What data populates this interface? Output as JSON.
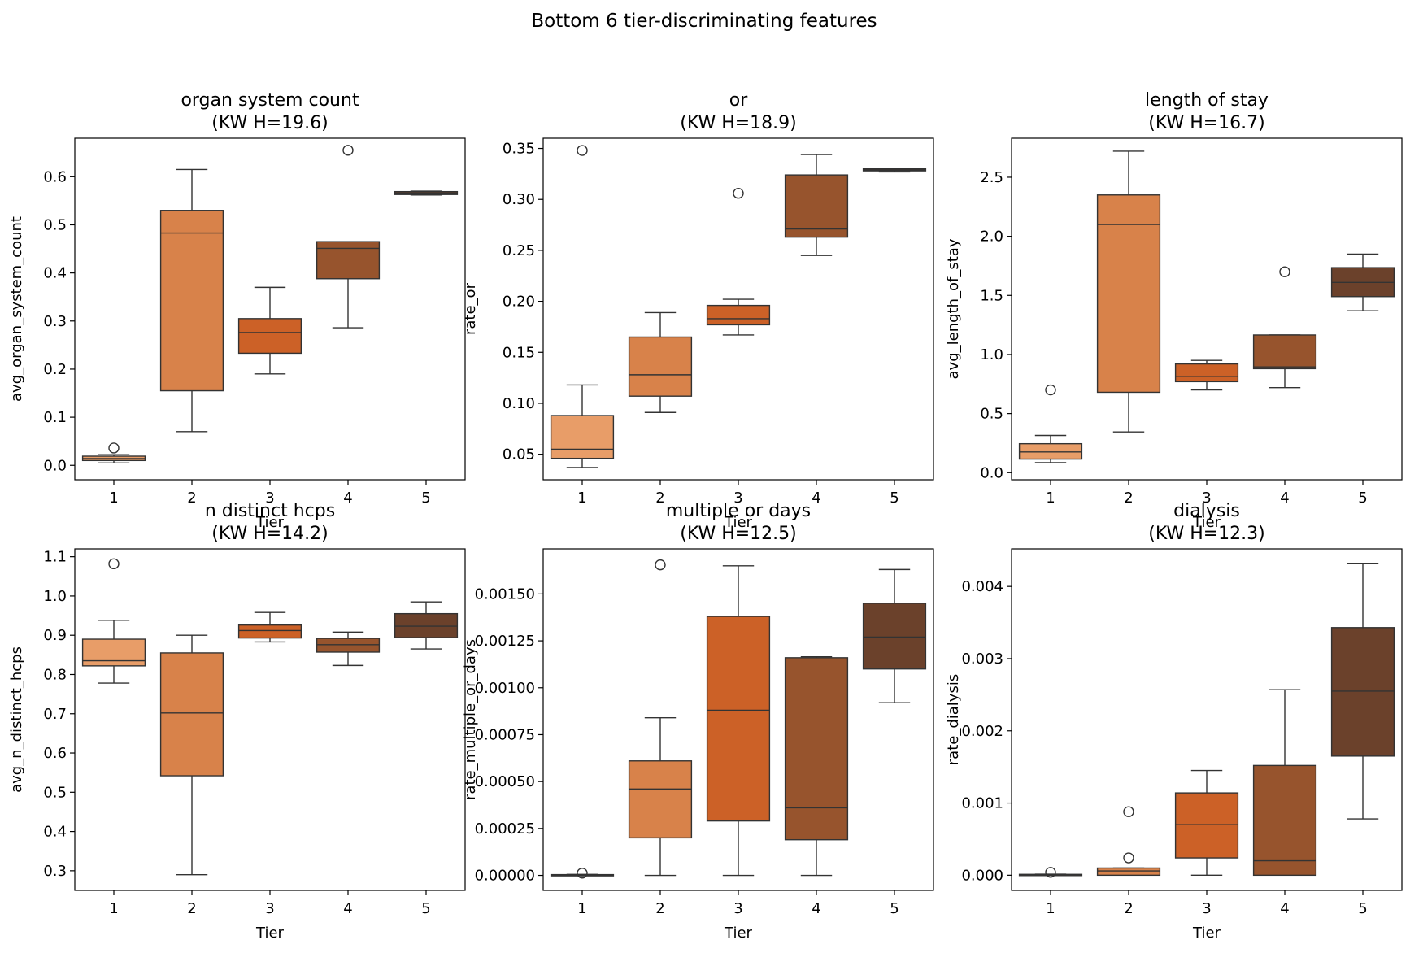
{
  "figure": {
    "suptitle": "Bottom 6 tier-discriminating features"
  },
  "colors": {
    "tiers": [
      "#e89d68",
      "#d8824a",
      "#cc6127",
      "#97542d",
      "#6b412b"
    ],
    "edge": "#333333",
    "axis": "#000000",
    "background": "#ffffff"
  },
  "chart_data": [
    {
      "type": "box",
      "title_line1": "organ system count",
      "title_line2": "(KW H=19.6)",
      "xlabel": "Tier",
      "ylabel": "avg_organ_system_count",
      "categories": [
        "1",
        "2",
        "3",
        "4",
        "5"
      ],
      "ylim": [
        -0.03,
        0.68
      ],
      "yticks": [
        0.0,
        0.1,
        0.2,
        0.3,
        0.4,
        0.5,
        0.6
      ],
      "ytick_labels": [
        "0.0",
        "0.1",
        "0.2",
        "0.3",
        "0.4",
        "0.5",
        "0.6"
      ],
      "boxes": [
        {
          "q1": 0.01,
          "median": 0.014,
          "q3": 0.019,
          "whislo": 0.005,
          "whishi": 0.022,
          "fliers": [
            0.036
          ]
        },
        {
          "q1": 0.155,
          "median": 0.483,
          "q3": 0.53,
          "whislo": 0.07,
          "whishi": 0.615,
          "fliers": []
        },
        {
          "q1": 0.233,
          "median": 0.276,
          "q3": 0.305,
          "whislo": 0.19,
          "whishi": 0.37,
          "fliers": []
        },
        {
          "q1": 0.388,
          "median": 0.451,
          "q3": 0.465,
          "whislo": 0.286,
          "whishi": 0.465,
          "fliers": [
            0.655
          ]
        },
        {
          "q1": 0.563,
          "median": 0.566,
          "q3": 0.569,
          "whislo": 0.562,
          "whishi": 0.57,
          "fliers": []
        }
      ]
    },
    {
      "type": "box",
      "title_line1": "or",
      "title_line2": "(KW H=18.9)",
      "xlabel": "Tier",
      "ylabel": "rate_or",
      "categories": [
        "1",
        "2",
        "3",
        "4",
        "5"
      ],
      "ylim": [
        0.025,
        0.36
      ],
      "yticks": [
        0.05,
        0.1,
        0.15,
        0.2,
        0.25,
        0.3,
        0.35
      ],
      "ytick_labels": [
        "0.05",
        "0.10",
        "0.15",
        "0.20",
        "0.25",
        "0.30",
        "0.35"
      ],
      "boxes": [
        {
          "q1": 0.046,
          "median": 0.055,
          "q3": 0.088,
          "whislo": 0.037,
          "whishi": 0.118,
          "fliers": [
            0.348
          ]
        },
        {
          "q1": 0.107,
          "median": 0.128,
          "q3": 0.165,
          "whislo": 0.091,
          "whishi": 0.189,
          "fliers": []
        },
        {
          "q1": 0.177,
          "median": 0.183,
          "q3": 0.196,
          "whislo": 0.167,
          "whishi": 0.202,
          "fliers": [
            0.306
          ]
        },
        {
          "q1": 0.263,
          "median": 0.271,
          "q3": 0.324,
          "whislo": 0.245,
          "whishi": 0.344,
          "fliers": []
        },
        {
          "q1": 0.328,
          "median": 0.329,
          "q3": 0.33,
          "whislo": 0.327,
          "whishi": 0.33,
          "fliers": []
        }
      ]
    },
    {
      "type": "box",
      "title_line1": "length of stay",
      "title_line2": "(KW H=16.7)",
      "xlabel": "Tier",
      "ylabel": "avg_length_of_stay",
      "categories": [
        "1",
        "2",
        "3",
        "4",
        "5"
      ],
      "ylim": [
        -0.06,
        2.83
      ],
      "yticks": [
        0.0,
        0.5,
        1.0,
        1.5,
        2.0,
        2.5
      ],
      "ytick_labels": [
        "0.0",
        "0.5",
        "1.0",
        "1.5",
        "2.0",
        "2.5"
      ],
      "boxes": [
        {
          "q1": 0.115,
          "median": 0.175,
          "q3": 0.245,
          "whislo": 0.085,
          "whishi": 0.315,
          "fliers": [
            0.7
          ]
        },
        {
          "q1": 0.68,
          "median": 2.1,
          "q3": 2.35,
          "whislo": 0.345,
          "whishi": 2.72,
          "fliers": []
        },
        {
          "q1": 0.77,
          "median": 0.815,
          "q3": 0.92,
          "whislo": 0.7,
          "whishi": 0.95,
          "fliers": []
        },
        {
          "q1": 0.88,
          "median": 0.895,
          "q3": 1.165,
          "whislo": 0.72,
          "whishi": 1.165,
          "fliers": [
            1.7
          ]
        },
        {
          "q1": 1.49,
          "median": 1.61,
          "q3": 1.735,
          "whislo": 1.37,
          "whishi": 1.85,
          "fliers": []
        }
      ]
    },
    {
      "type": "box",
      "title_line1": "n distinct hcps",
      "title_line2": "(KW H=14.2)",
      "xlabel": "Tier",
      "ylabel": "avg_n_distinct_hcps",
      "categories": [
        "1",
        "2",
        "3",
        "4",
        "5"
      ],
      "ylim": [
        0.25,
        1.12
      ],
      "yticks": [
        0.3,
        0.4,
        0.5,
        0.6,
        0.7,
        0.8,
        0.9,
        1.0,
        1.1
      ],
      "ytick_labels": [
        "0.3",
        "0.4",
        "0.5",
        "0.6",
        "0.7",
        "0.8",
        "0.9",
        "1.0",
        "1.1"
      ],
      "boxes": [
        {
          "q1": 0.822,
          "median": 0.835,
          "q3": 0.89,
          "whislo": 0.778,
          "whishi": 0.938,
          "fliers": [
            1.082
          ]
        },
        {
          "q1": 0.542,
          "median": 0.702,
          "q3": 0.855,
          "whislo": 0.29,
          "whishi": 0.9,
          "fliers": []
        },
        {
          "q1": 0.893,
          "median": 0.912,
          "q3": 0.926,
          "whislo": 0.883,
          "whishi": 0.958,
          "fliers": []
        },
        {
          "q1": 0.857,
          "median": 0.876,
          "q3": 0.892,
          "whislo": 0.823,
          "whishi": 0.908,
          "fliers": []
        },
        {
          "q1": 0.894,
          "median": 0.923,
          "q3": 0.955,
          "whislo": 0.865,
          "whishi": 0.985,
          "fliers": []
        }
      ]
    },
    {
      "type": "box",
      "title_line1": "multiple or days",
      "title_line2": "(KW H=12.5)",
      "xlabel": "Tier",
      "ylabel": "rate_multiple_or_days",
      "categories": [
        "1",
        "2",
        "3",
        "4",
        "5"
      ],
      "ylim": [
        -8e-05,
        0.00174
      ],
      "yticks": [
        0.0,
        0.00025,
        0.0005,
        0.00075,
        0.001,
        0.00125,
        0.0015
      ],
      "ytick_labels": [
        "0.00000",
        "0.00025",
        "0.00050",
        "0.00075",
        "0.00100",
        "0.00125",
        "0.00150"
      ],
      "boxes": [
        {
          "q1": 2e-06,
          "median": 3e-06,
          "q3": 4e-06,
          "whislo": 0.0,
          "whishi": 5e-06,
          "fliers": [
            1.2e-05
          ]
        },
        {
          "q1": 0.0002,
          "median": 0.00046,
          "q3": 0.00061,
          "whislo": 0.0,
          "whishi": 0.00084,
          "fliers": [
            0.001655
          ]
        },
        {
          "q1": 0.00029,
          "median": 0.00088,
          "q3": 0.00138,
          "whislo": 0.0,
          "whishi": 0.00165,
          "fliers": []
        },
        {
          "q1": 0.00019,
          "median": 0.00036,
          "q3": 0.00116,
          "whislo": 0.0,
          "whishi": 0.001165,
          "fliers": []
        },
        {
          "q1": 0.0011,
          "median": 0.00127,
          "q3": 0.00145,
          "whislo": 0.00092,
          "whishi": 0.00163,
          "fliers": []
        }
      ]
    },
    {
      "type": "box",
      "title_line1": "dialysis",
      "title_line2": "(KW H=12.3)",
      "xlabel": "Tier",
      "ylabel": "rate_dialysis",
      "categories": [
        "1",
        "2",
        "3",
        "4",
        "5"
      ],
      "ylim": [
        -0.00021,
        0.00452
      ],
      "yticks": [
        0.0,
        0.001,
        0.002,
        0.003,
        0.004
      ],
      "ytick_labels": [
        "0.000",
        "0.001",
        "0.002",
        "0.003",
        "0.004"
      ],
      "boxes": [
        {
          "q1": 3e-06,
          "median": 8e-06,
          "q3": 1.2e-05,
          "whislo": 0.0,
          "whishi": 1.5e-05,
          "fliers": [
            4e-05
          ]
        },
        {
          "q1": 0.0,
          "median": 6e-05,
          "q3": 0.0001,
          "whislo": 0.0,
          "whishi": 0.0001,
          "fliers": [
            0.00024,
            0.00088
          ]
        },
        {
          "q1": 0.00024,
          "median": 0.0007,
          "q3": 0.00114,
          "whislo": 0.0,
          "whishi": 0.00145,
          "fliers": []
        },
        {
          "q1": 0.0,
          "median": 0.0002,
          "q3": 0.00152,
          "whislo": 0.0,
          "whishi": 0.00257,
          "fliers": []
        },
        {
          "q1": 0.00165,
          "median": 0.00255,
          "q3": 0.00343,
          "whislo": 0.00078,
          "whishi": 0.00432,
          "fliers": []
        }
      ]
    }
  ]
}
